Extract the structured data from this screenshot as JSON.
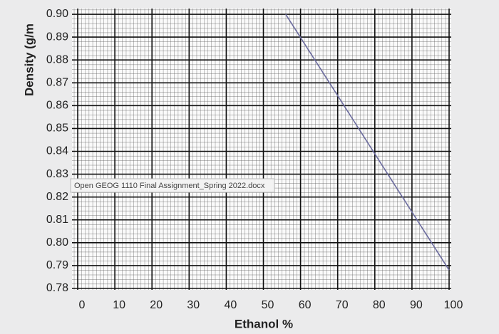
{
  "chart_data": {
    "type": "line",
    "y_label": "Density (g/m",
    "x_label": "Ethanol %",
    "x": [
      56,
      100
    ],
    "series": [
      {
        "name": "Density",
        "color": "#6b6b9e",
        "values": [
          0.9,
          0.788
        ]
      }
    ],
    "xlim": [
      0,
      100
    ],
    "ylim": [
      0.78,
      0.9025
    ],
    "xticks": [
      0,
      10,
      20,
      30,
      40,
      50,
      60,
      70,
      80,
      90,
      100
    ],
    "yticks": [
      0.78,
      0.79,
      {
        "value": 0.8,
        "label": "0.80"
      },
      0.81,
      0.82,
      0.83,
      0.84,
      0.85,
      0.86,
      0.87,
      0.88,
      0.89,
      {
        "value": 0.9,
        "label": "0.90"
      }
    ],
    "grid": true
  },
  "tooltip": "Open GEOG 1110 Final Assignment_Spring 2022.docx"
}
